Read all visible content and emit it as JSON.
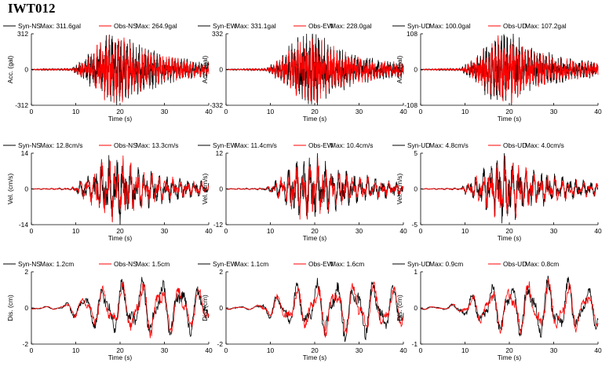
{
  "figure_title": "IWT012",
  "colors": {
    "syn": "#000000",
    "obs": "#ff0000"
  },
  "chart_data": [
    {
      "type": "line",
      "row": 0,
      "col": 0,
      "component": "NS",
      "ylabel": "Acc. (gal)",
      "xlabel": "Time (s)",
      "xlim": [
        0,
        40
      ],
      "xticks": [
        0,
        10,
        20,
        30,
        40
      ],
      "ylim": [
        -312,
        312
      ],
      "yticks": [
        "312",
        "0",
        "-312"
      ],
      "series": [
        {
          "name": "Syn-NS",
          "max_label": "Max: 311.6gal",
          "color": "#000000"
        },
        {
          "name": "Obs-NS",
          "max_label": "Max: 264.9gal",
          "color": "#ff0000"
        }
      ]
    },
    {
      "type": "line",
      "row": 0,
      "col": 1,
      "component": "EW",
      "ylabel": "Acc. (gal)",
      "xlabel": "Time (s)",
      "xlim": [
        0,
        40
      ],
      "xticks": [
        0,
        10,
        20,
        30,
        40
      ],
      "ylim": [
        -332,
        332
      ],
      "yticks": [
        "332",
        "0",
        "-332"
      ],
      "series": [
        {
          "name": "Syn-EW",
          "max_label": "Max: 331.1gal",
          "color": "#000000"
        },
        {
          "name": "Obs-EW",
          "max_label": "Max: 228.0gal",
          "color": "#ff0000"
        }
      ]
    },
    {
      "type": "line",
      "row": 0,
      "col": 2,
      "component": "UD",
      "ylabel": "Acc. (gal)",
      "xlabel": "Time (s)",
      "xlim": [
        0,
        40
      ],
      "xticks": [
        0,
        10,
        20,
        30,
        40
      ],
      "ylim": [
        -108,
        108
      ],
      "yticks": [
        "108",
        "0",
        "-108"
      ],
      "series": [
        {
          "name": "Syn-UD",
          "max_label": "Max: 100.0gal",
          "color": "#000000"
        },
        {
          "name": "Obs-UD",
          "max_label": "Max: 107.2gal",
          "color": "#ff0000"
        }
      ]
    },
    {
      "type": "line",
      "row": 1,
      "col": 0,
      "component": "NS",
      "ylabel": "Vel. (cm/s)",
      "xlabel": "Time (s)",
      "xlim": [
        0,
        40
      ],
      "xticks": [
        0,
        10,
        20,
        30,
        40
      ],
      "ylim": [
        -14,
        14
      ],
      "yticks": [
        "14",
        "0",
        "-14"
      ],
      "series": [
        {
          "name": "Syn-NS",
          "max_label": "Max: 12.8cm/s",
          "color": "#000000"
        },
        {
          "name": "Obs-NS",
          "max_label": "Max: 13.3cm/s",
          "color": "#ff0000"
        }
      ]
    },
    {
      "type": "line",
      "row": 1,
      "col": 1,
      "component": "EW",
      "ylabel": "Vel. (cm/s)",
      "xlabel": "Time (s)",
      "xlim": [
        0,
        40
      ],
      "xticks": [
        0,
        10,
        20,
        30,
        40
      ],
      "ylim": [
        -12,
        12
      ],
      "yticks": [
        "12",
        "0",
        "-12"
      ],
      "series": [
        {
          "name": "Syn-EW",
          "max_label": "Max: 11.4cm/s",
          "color": "#000000"
        },
        {
          "name": "Obs-EW",
          "max_label": "Max: 10.4cm/s",
          "color": "#ff0000"
        }
      ]
    },
    {
      "type": "line",
      "row": 1,
      "col": 2,
      "component": "UD",
      "ylabel": "Vel. (cm/s)",
      "xlabel": "Time (s)",
      "xlim": [
        0,
        40
      ],
      "xticks": [
        0,
        10,
        20,
        30,
        40
      ],
      "ylim": [
        -5,
        5
      ],
      "yticks": [
        "5",
        "0",
        "-5"
      ],
      "series": [
        {
          "name": "Syn-UD",
          "max_label": "Max: 4.8cm/s",
          "color": "#000000"
        },
        {
          "name": "Obs-UD",
          "max_label": "Max: 4.0cm/s",
          "color": "#ff0000"
        }
      ]
    },
    {
      "type": "line",
      "row": 2,
      "col": 0,
      "component": "NS",
      "ylabel": "Dis. (cm)",
      "xlabel": "Time (s)",
      "xlim": [
        0,
        40
      ],
      "xticks": [
        0,
        10,
        20,
        30,
        40
      ],
      "ylim": [
        -2,
        2
      ],
      "yticks": [
        "2",
        "0",
        "-2"
      ],
      "series": [
        {
          "name": "Syn-NS",
          "max_label": "Max: 1.2cm",
          "color": "#000000"
        },
        {
          "name": "Obs-NS",
          "max_label": "Max: 1.5cm",
          "color": "#ff0000"
        }
      ]
    },
    {
      "type": "line",
      "row": 2,
      "col": 1,
      "component": "EW",
      "ylabel": "Dis. (cm)",
      "xlabel": "Time (s)",
      "xlim": [
        0,
        40
      ],
      "xticks": [
        0,
        10,
        20,
        30,
        40
      ],
      "ylim": [
        -2,
        2
      ],
      "yticks": [
        "2",
        "0",
        "-2"
      ],
      "series": [
        {
          "name": "Syn-EW",
          "max_label": "Max: 1.1cm",
          "color": "#000000"
        },
        {
          "name": "Obs-EW",
          "max_label": "Max: 1.6cm",
          "color": "#ff0000"
        }
      ]
    },
    {
      "type": "line",
      "row": 2,
      "col": 2,
      "component": "UD",
      "ylabel": "Dis. (cm)",
      "xlabel": "Time (s)",
      "xlim": [
        0,
        40
      ],
      "xticks": [
        0,
        10,
        20,
        30,
        40
      ],
      "ylim": [
        -1,
        1
      ],
      "yticks": [
        "1",
        "0",
        "-1"
      ],
      "series": [
        {
          "name": "Syn-UD",
          "max_label": "Max: 0.9cm",
          "color": "#000000"
        },
        {
          "name": "Obs-UD",
          "max_label": "Max: 0.8cm",
          "color": "#ff0000"
        }
      ]
    }
  ]
}
